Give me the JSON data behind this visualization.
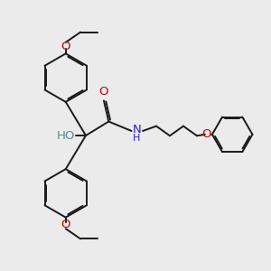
{
  "bg_color": "#ebebeb",
  "bond_color": "#1a1a1a",
  "oxygen_color": "#cc0000",
  "nitrogen_color": "#2222cc",
  "hydrogen_color": "#5a8a8a",
  "lw": 1.4,
  "dbg": 0.055,
  "fs": 9.5,
  "xlim": [
    0,
    10
  ],
  "ylim": [
    0,
    10
  ]
}
